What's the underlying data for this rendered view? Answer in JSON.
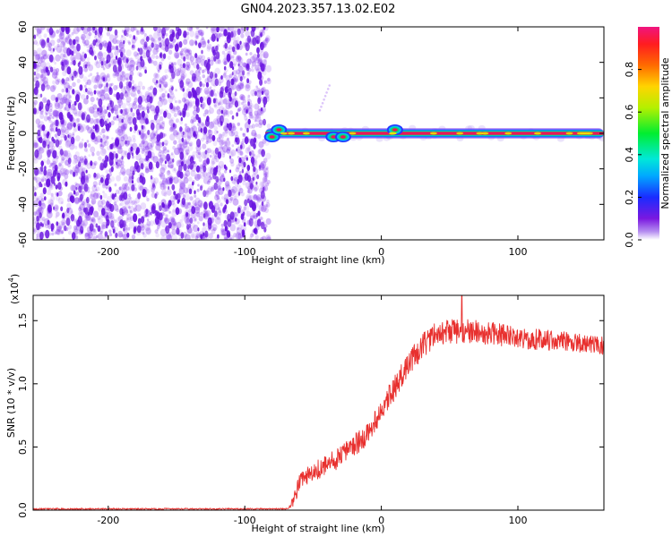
{
  "title": "GN04.2023.357.13.02.E02",
  "colors": {
    "snr_line": "#e8302e",
    "cloud": "#8a3cf0",
    "dark_speck": "#6a14e0",
    "signal_core": "#e8185a"
  },
  "chart_data": [
    {
      "type": "heatmap",
      "xlabel": "Height of straight line (km)",
      "ylabel": "Frequency (Hz)",
      "xlim": [
        -255,
        163
      ],
      "ylim": [
        -60,
        60
      ],
      "xticks": [
        -200,
        -100,
        0,
        100
      ],
      "xtick_labels": [
        "-200",
        "-100",
        "0",
        "100"
      ],
      "yticks": [
        -60,
        -40,
        -20,
        0,
        20,
        40,
        60
      ],
      "ytick_labels": [
        "-60",
        "-40",
        "-20",
        "0",
        "20",
        "40",
        "60"
      ],
      "noise_region_x": [
        -255,
        -85
      ],
      "signal": {
        "x_start": -85,
        "x_end": 163,
        "frequency": 0,
        "bumps": [
          {
            "x": -80,
            "dy": -2
          },
          {
            "x": -75,
            "dy": 2
          },
          {
            "x": -35,
            "dy": -2
          },
          {
            "x": -28,
            "dy": -2
          },
          {
            "x": 10,
            "dy": 2
          }
        ]
      },
      "faint_trace": {
        "x": [
          -45,
          -38
        ],
        "y": [
          13,
          27
        ]
      },
      "colorbar": {
        "label": "Normalized spectral amplitude",
        "range": [
          0,
          1
        ],
        "ticks": [
          0.0,
          0.2,
          0.4,
          0.6,
          0.8
        ],
        "tick_labels": [
          "0.0",
          "0.2",
          "0.4",
          "0.6",
          "0.8"
        ]
      }
    },
    {
      "type": "line",
      "xlabel": "Height of straight line (km)",
      "ylabel": "SNR (10 * v/v)",
      "scale_label": "(x10",
      "scale_exp": "4",
      "scale_close": ")",
      "xlim": [
        -255,
        163
      ],
      "ylim": [
        0,
        1.7
      ],
      "xticks": [
        -200,
        -100,
        0,
        100
      ],
      "xtick_labels": [
        "-200",
        "-100",
        "0",
        "100"
      ],
      "yticks": [
        0.0,
        0.5,
        1.0,
        1.5
      ],
      "ytick_labels": [
        "0.0",
        "0.5",
        "1.0",
        "1.5"
      ],
      "series": [
        {
          "name": "SNR",
          "control_points": {
            "x": [
              -255,
              -68,
              -64,
              -60,
              -50,
              -30,
              -10,
              10,
              20,
              30,
              40,
              60,
              80,
              100,
              130,
              163
            ],
            "y": [
              0.01,
              0.01,
              0.08,
              0.22,
              0.3,
              0.42,
              0.6,
              0.98,
              1.15,
              1.3,
              1.4,
              1.42,
              1.4,
              1.36,
              1.34,
              1.3
            ]
          },
          "noise_amplitude": [
            {
              "x": -255,
              "a": 0.006
            },
            {
              "x": -68,
              "a": 0.006
            },
            {
              "x": -62,
              "a": 0.07
            },
            {
              "x": 10,
              "a": 0.1
            },
            {
              "x": 40,
              "a": 0.1
            },
            {
              "x": 163,
              "a": 0.07
            }
          ],
          "peak": {
            "x": 59,
            "y": 1.7
          }
        }
      ]
    }
  ]
}
